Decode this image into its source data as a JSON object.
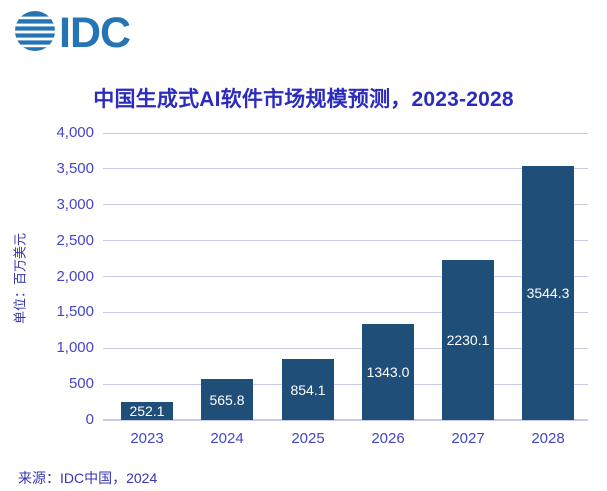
{
  "logo": {
    "text": "IDC",
    "globe_icon": "striped-globe-icon",
    "color": "#2575B6"
  },
  "source": "来源：IDC中国，2024",
  "colors": {
    "background": "#FFFFFF",
    "title": "#2B2BBE",
    "tick": "#4545C6",
    "axis_unit": "#3434AE",
    "bar": "#1F4E79",
    "value_label": "#FFFFFF",
    "gridline": "#C9C9E9",
    "logo": "#2575B6",
    "source_text": "#3636B2"
  },
  "chart_data": {
    "type": "bar",
    "title": "中国生成式AI软件市场规模预测，2023-2028",
    "categories": [
      "2023",
      "2024",
      "2025",
      "2026",
      "2027",
      "2028"
    ],
    "values": [
      252.1,
      565.8,
      854.1,
      1343.0,
      2230.1,
      3544.3
    ],
    "value_labels": [
      "252.1",
      "565.8",
      "854.1",
      "1343.0",
      "2230.1",
      "3544.3"
    ],
    "xlabel": "",
    "ylabel": "单位：百万美元",
    "ylim": [
      0,
      4000
    ],
    "ytick_step": 500,
    "ytick_labels": [
      "0",
      "500",
      "1,000",
      "1,500",
      "2,000",
      "2,500",
      "3,000",
      "3,500",
      "4,000"
    ],
    "grid": true,
    "legend_position": "none",
    "bar_label_position": "inside-center"
  }
}
